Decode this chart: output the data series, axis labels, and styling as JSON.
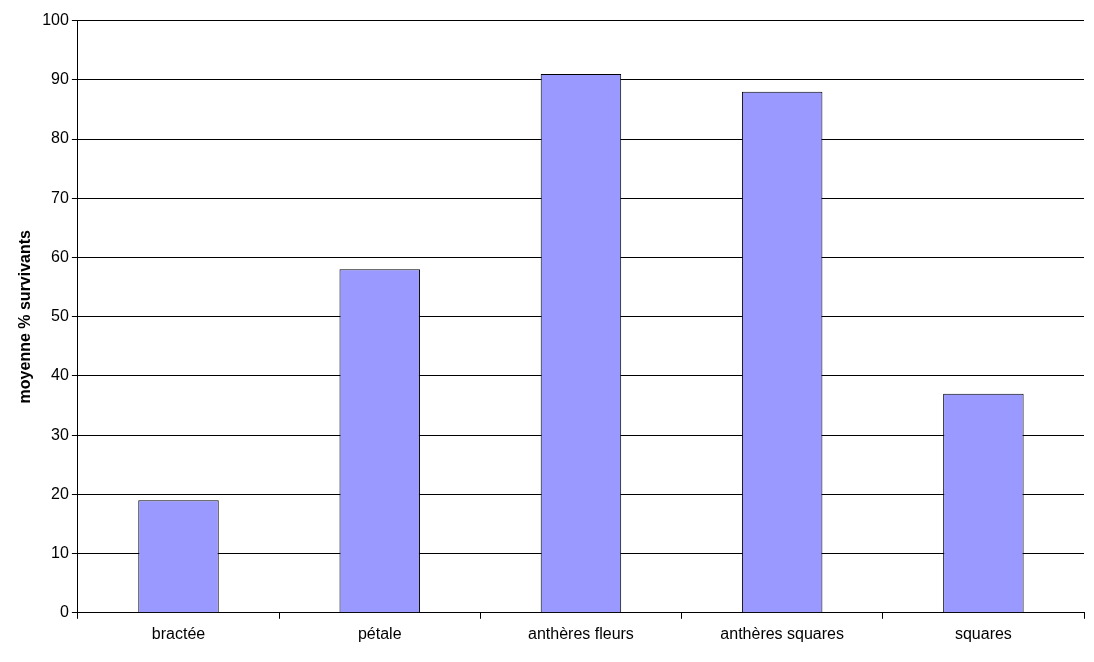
{
  "chart_data": {
    "type": "bar",
    "ylabel": "moyenne % survivants",
    "categories": [
      "bractée",
      "pétale",
      "anthères fleurs",
      "anthères squares",
      "squares"
    ],
    "values": [
      19,
      58,
      91,
      88,
      37
    ],
    "color": "#9999ff",
    "ylim": [
      0,
      100
    ],
    "yticks": [
      0,
      10,
      20,
      30,
      40,
      50,
      60,
      70,
      80,
      90,
      100
    ],
    "grid": "y",
    "legend": false
  }
}
